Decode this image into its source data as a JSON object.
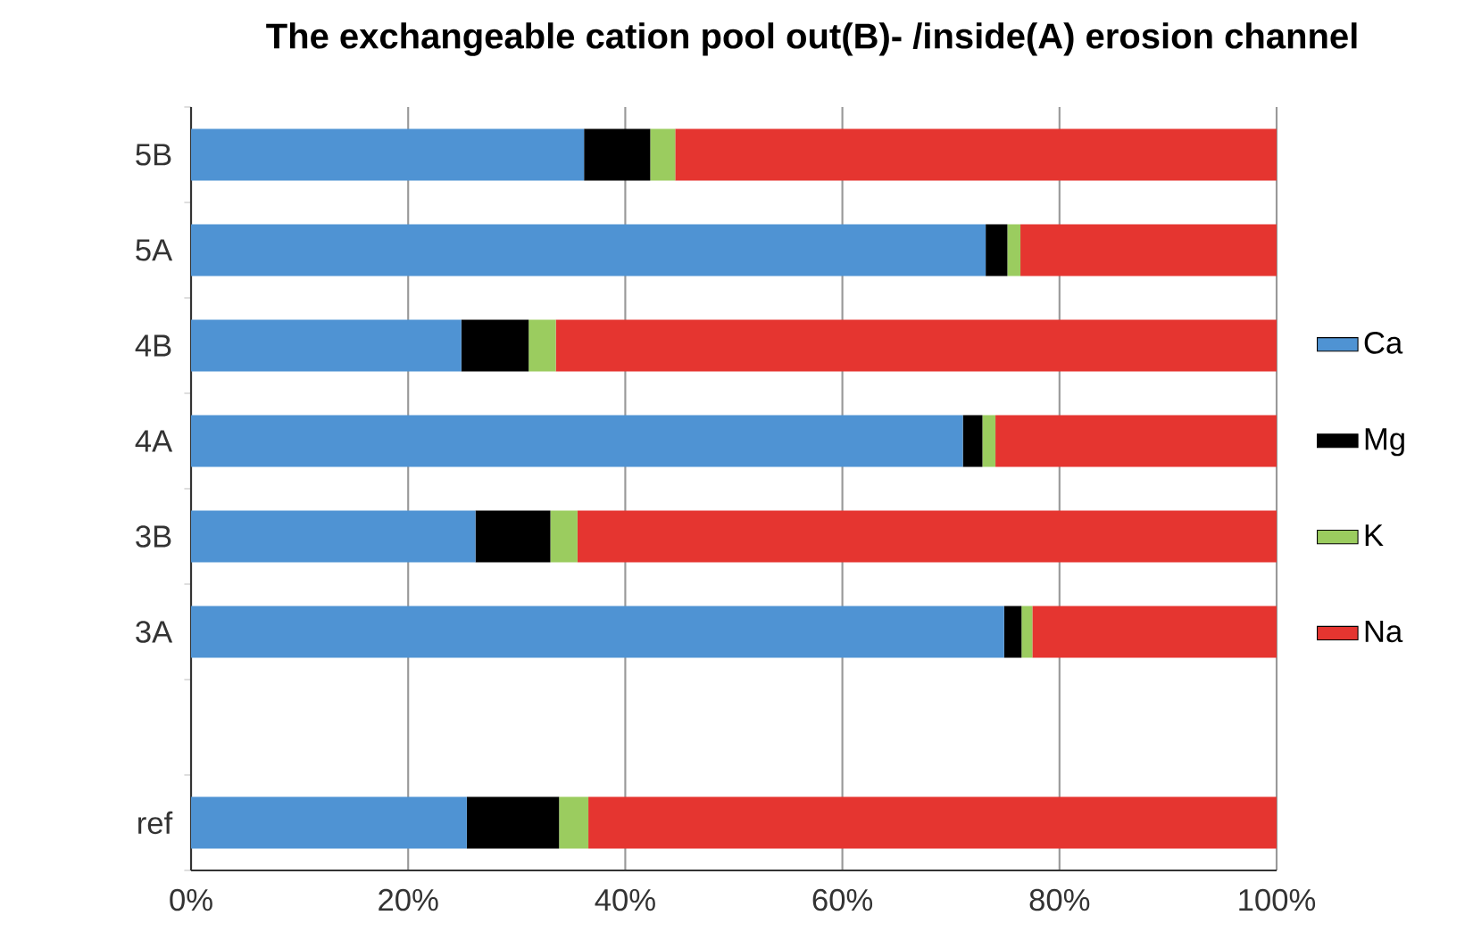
{
  "chart_data": {
    "type": "bar",
    "orientation": "horizontal",
    "stacked": true,
    "title": "The exchangeable cation pool out(B)- /inside(A) erosion channel",
    "categories": [
      "5B",
      "5A",
      "4B",
      "4A",
      "3B",
      "3A",
      null,
      "ref"
    ],
    "series": [
      {
        "name": "Ca",
        "color": "#4f93d3",
        "values": [
          36.2,
          73.2,
          24.9,
          71.1,
          26.2,
          74.9,
          null,
          25.4
        ]
      },
      {
        "name": "Mg",
        "color": "#000000",
        "values": [
          6.1,
          2.0,
          6.2,
          1.8,
          6.9,
          1.6,
          null,
          8.5
        ]
      },
      {
        "name": "K",
        "color": "#9bcc5f",
        "values": [
          2.3,
          1.2,
          2.5,
          1.2,
          2.5,
          1.0,
          null,
          2.7
        ]
      },
      {
        "name": "Na",
        "color": "#e53530",
        "values": [
          55.4,
          23.6,
          66.4,
          25.9,
          64.4,
          22.5,
          null,
          63.4
        ]
      }
    ],
    "xlim": [
      0,
      100
    ],
    "xticks": [
      {
        "value": 0,
        "label": "0%"
      },
      {
        "value": 20,
        "label": "20%"
      },
      {
        "value": 40,
        "label": "40%"
      },
      {
        "value": 60,
        "label": "60%"
      },
      {
        "value": 80,
        "label": "80%"
      },
      {
        "value": 100,
        "label": "100%"
      }
    ],
    "grid": "x",
    "legend": "right"
  }
}
